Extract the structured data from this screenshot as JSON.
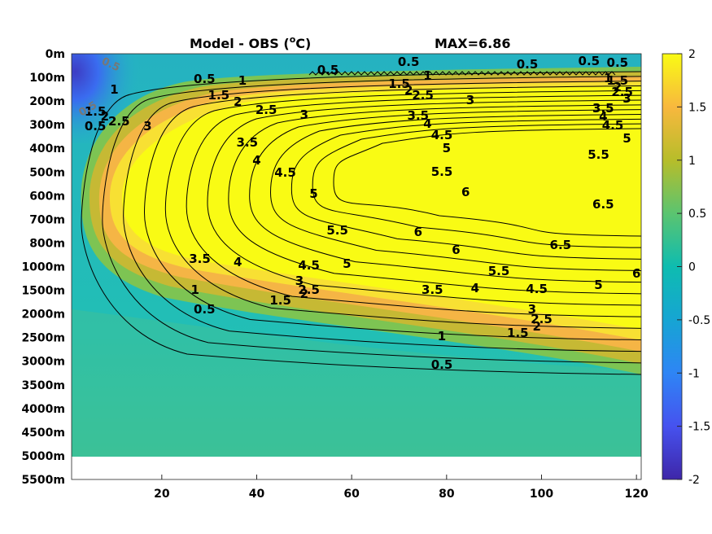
{
  "chart_data": {
    "type": "heatmap",
    "title": "Model - OBS (",
    "title_unit": "C)",
    "title_superscript": "o",
    "max_label": "MAX=6.86",
    "x_ticks": [
      20,
      40,
      60,
      80,
      100,
      120
    ],
    "xlim": [
      1,
      121
    ],
    "y_tick_labels": [
      "0m",
      "100m",
      "200m",
      "300m",
      "400m",
      "500m",
      "600m",
      "700m",
      "800m",
      "1000m",
      "1500m",
      "2000m",
      "2500m",
      "3000m",
      "3500m",
      "4000m",
      "4500m",
      "5000m",
      "5500m"
    ],
    "data_bottom_label": "5000m",
    "colorbar": {
      "ticks": [
        2,
        1.5,
        1,
        0.5,
        0,
        -0.5,
        -1,
        -1.5,
        -2
      ],
      "tick_labels": [
        "2",
        "1.5",
        "1",
        "0.5",
        "0",
        "-0.5",
        "-1",
        "-1.5",
        "-2"
      ],
      "clim": [
        -2,
        2
      ],
      "colormap": "parula"
    },
    "contour_levels": [
      0.5,
      1,
      1.5,
      2,
      2.5,
      3,
      3.5,
      4,
      4.5,
      5,
      5.5,
      6,
      6.5
    ],
    "contour_labels": [
      {
        "t": "0.5",
        "x": 72,
        "y": 81
      },
      {
        "t": "0.5",
        "x": 97,
        "y": 84
      },
      {
        "t": "0.5",
        "x": 110,
        "y": 80
      },
      {
        "t": "0.5",
        "x": 116,
        "y": 82
      },
      {
        "t": "0.5",
        "x": 6,
        "y": 160
      },
      {
        "t": "0.5",
        "x": 29,
        "y": 102
      },
      {
        "t": "0.5",
        "x": 55,
        "y": 91
      },
      {
        "t": "1",
        "x": 10,
        "y": 115
      },
      {
        "t": "1",
        "x": 37,
        "y": 104
      },
      {
        "t": "1",
        "x": 76,
        "y": 98
      },
      {
        "t": "1",
        "x": 114,
        "y": 101
      },
      {
        "t": "1.5",
        "x": 6,
        "y": 142
      },
      {
        "t": "1.5",
        "x": 32,
        "y": 122
      },
      {
        "t": "1.5",
        "x": 70,
        "y": 108
      },
      {
        "t": "1.5",
        "x": 116,
        "y": 104
      },
      {
        "t": "2",
        "x": 8,
        "y": 148
      },
      {
        "t": "2",
        "x": 36,
        "y": 130
      },
      {
        "t": "2",
        "x": 72,
        "y": 116
      },
      {
        "t": "2",
        "x": 116,
        "y": 112
      },
      {
        "t": "2.5",
        "x": 11,
        "y": 154
      },
      {
        "t": "2.5",
        "x": 42,
        "y": 140
      },
      {
        "t": "2.5",
        "x": 75,
        "y": 122
      },
      {
        "t": "2.5",
        "x": 117,
        "y": 118
      },
      {
        "t": "3",
        "x": 17,
        "y": 160
      },
      {
        "t": "3",
        "x": 50,
        "y": 146
      },
      {
        "t": "3",
        "x": 85,
        "y": 128
      },
      {
        "t": "3",
        "x": 118,
        "y": 126
      },
      {
        "t": "3.5",
        "x": 38,
        "y": 180
      },
      {
        "t": "3.5",
        "x": 74,
        "y": 147
      },
      {
        "t": "3.5",
        "x": 113,
        "y": 138
      },
      {
        "t": "4",
        "x": 40,
        "y": 202
      },
      {
        "t": "4",
        "x": 76,
        "y": 157
      },
      {
        "t": "4",
        "x": 113,
        "y": 148
      },
      {
        "t": "4.5",
        "x": 46,
        "y": 217
      },
      {
        "t": "4.5",
        "x": 79,
        "y": 171
      },
      {
        "t": "4.5",
        "x": 115,
        "y": 159
      },
      {
        "t": "5",
        "x": 52,
        "y": 243
      },
      {
        "t": "5",
        "x": 80,
        "y": 187
      },
      {
        "t": "5",
        "x": 118,
        "y": 175
      },
      {
        "t": "5.5",
        "x": 57,
        "y": 288
      },
      {
        "t": "5.5",
        "x": 79,
        "y": 216
      },
      {
        "t": "5.5",
        "x": 112,
        "y": 195
      },
      {
        "t": "6",
        "x": 74,
        "y": 290
      },
      {
        "t": "6",
        "x": 84,
        "y": 241
      },
      {
        "t": "6",
        "x": 82,
        "y": 312
      },
      {
        "t": "6",
        "x": 120,
        "y": 341
      },
      {
        "t": "6.5",
        "x": 104,
        "y": 306
      },
      {
        "t": "6.5",
        "x": 113,
        "y": 256
      },
      {
        "t": "3.5",
        "x": 28,
        "y": 323
      },
      {
        "t": "4",
        "x": 36,
        "y": 327
      },
      {
        "t": "4.5",
        "x": 51,
        "y": 331
      },
      {
        "t": "5",
        "x": 59,
        "y": 329
      },
      {
        "t": "5.5",
        "x": 91,
        "y": 338
      },
      {
        "t": "5",
        "x": 112,
        "y": 355
      },
      {
        "t": "4.5",
        "x": 99,
        "y": 360
      },
      {
        "t": "4",
        "x": 86,
        "y": 359
      },
      {
        "t": "3.5",
        "x": 77,
        "y": 361
      },
      {
        "t": "3",
        "x": 49,
        "y": 350
      },
      {
        "t": "2.5",
        "x": 51,
        "y": 361
      },
      {
        "t": "2",
        "x": 50,
        "y": 366
      },
      {
        "t": "1.5",
        "x": 45,
        "y": 374
      },
      {
        "t": "1",
        "x": 27,
        "y": 361
      },
      {
        "t": "0.5",
        "x": 29,
        "y": 385
      },
      {
        "t": "3",
        "x": 98,
        "y": 385
      },
      {
        "t": "2.5",
        "x": 100,
        "y": 397
      },
      {
        "t": "2",
        "x": 99,
        "y": 406
      },
      {
        "t": "1.5",
        "x": 95,
        "y": 414
      },
      {
        "t": "1",
        "x": 79,
        "y": 418
      },
      {
        "t": "0.5",
        "x": 79,
        "y": 453
      }
    ]
  }
}
